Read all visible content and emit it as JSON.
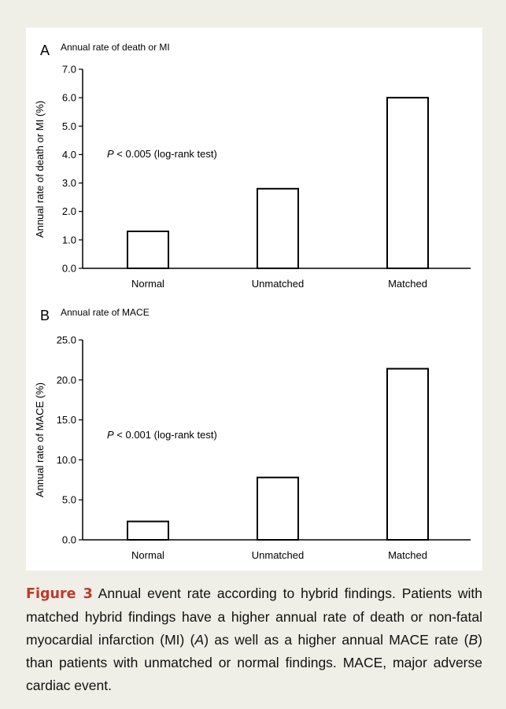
{
  "chart_data": [
    {
      "type": "bar",
      "panel": "A",
      "title": "Annual rate of death or MI",
      "ylabel": "Annual rate of death or MI (%)",
      "xlabel": "",
      "categories": [
        "Normal",
        "Unmatched",
        "Matched"
      ],
      "values": [
        1.3,
        2.8,
        6.0
      ],
      "ylim": [
        0,
        7
      ],
      "yticks": [
        "0.0",
        "1.0",
        "2.0",
        "3.0",
        "4.0",
        "5.0",
        "6.0",
        "7.0"
      ],
      "annotation": {
        "p": "P",
        "rest": " < 0.005 (log-rank test)"
      },
      "grid": false,
      "bar_color": "#ffffff",
      "bar_stroke": "#000000"
    },
    {
      "type": "bar",
      "panel": "B",
      "title": "Annual rate of MACE",
      "ylabel": "Annual rate of MACE (%)",
      "xlabel": "",
      "categories": [
        "Normal",
        "Unmatched",
        "Matched"
      ],
      "values": [
        2.3,
        7.8,
        21.4
      ],
      "ylim": [
        0,
        25
      ],
      "yticks": [
        "0.0",
        "5.0",
        "10.0",
        "15.0",
        "20.0",
        "25.0"
      ],
      "annotation": {
        "p": "P",
        "rest": " < 0.001 (log-rank test)"
      },
      "grid": false,
      "bar_color": "#ffffff",
      "bar_stroke": "#000000"
    }
  ],
  "caption": {
    "label": "Figure 3",
    "lead": " Annual event rate according to hybrid findings. Patients with matched hybrid findings have a higher annual rate of death or non-fatal myocardial infarction (MI) (",
    "refA": "A",
    "mid": ") as well as a higher annual MACE rate (",
    "refB": "B",
    "tail": ") than patients with unmatched or normal findings. MACE, major adverse cardiac event."
  }
}
